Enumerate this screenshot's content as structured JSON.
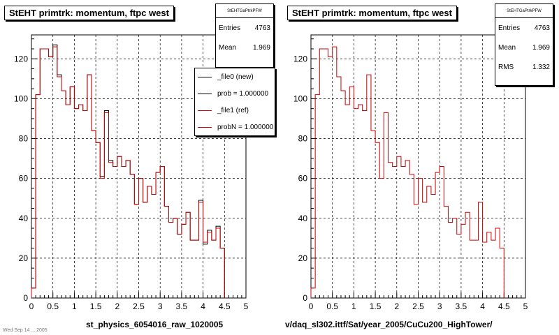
{
  "chart_data": [
    {
      "type": "histogram-step",
      "title": "StEHT primtrk: momentum, ftpc west",
      "xlabel": "st_physics_6054016_raw_1020005",
      "xlim": [
        0,
        5
      ],
      "ylim": [
        0,
        132
      ],
      "xticks": [
        "0",
        "0.5",
        "1",
        "1.5",
        "2",
        "2.5",
        "3",
        "3.5",
        "4",
        "4.5",
        "5"
      ],
      "yticks": [
        "0",
        "20",
        "40",
        "60",
        "80",
        "100",
        "120"
      ],
      "grid": true,
      "bin_width": 0.1,
      "stats": {
        "name": "StEHTGaPtrkPFW",
        "entries_label": "Entries",
        "entries": "4763",
        "mean_label": "Mean",
        "mean": "1.969"
      },
      "legend": {
        "placement": "top-right",
        "entries": [
          "_file0 (new)",
          "prob = 1.000000",
          "_file1 (ref)",
          "probN = 1.000000"
        ],
        "colors": [
          "#000000",
          "#000000",
          "#cc0000",
          "#cc0000"
        ]
      },
      "series": [
        {
          "name": "_file0 (new)",
          "color": "#000000",
          "values": [
            5,
            102,
            125,
            125,
            121,
            127,
            112,
            104,
            97,
            106,
            95,
            97,
            94,
            112,
            84,
            78,
            61,
            94,
            69,
            66,
            71,
            66,
            69,
            62,
            47,
            60,
            48,
            56,
            52,
            63,
            66,
            46,
            38,
            40,
            32,
            37,
            43,
            29,
            29,
            49,
            27,
            34,
            29,
            36,
            25
          ]
        },
        {
          "name": "_file1 (ref)",
          "color": "#cc0000",
          "values": [
            5,
            102,
            125,
            125,
            121,
            126,
            111,
            104,
            97,
            106,
            95,
            97,
            94,
            112,
            84,
            78,
            60,
            93,
            68,
            66,
            71,
            66,
            69,
            62,
            47,
            60,
            48,
            56,
            52,
            63,
            66,
            46,
            38,
            40,
            32,
            37,
            43,
            29,
            29,
            48,
            28,
            33,
            29,
            35,
            25
          ]
        }
      ]
    },
    {
      "type": "histogram-step",
      "title": "StEHT primtrk: momentum, ftpc west",
      "xlabel": "v/daq_sl302.ittf/Sat/year_2005/CuCu200_HighTower/",
      "xlim": [
        0,
        5
      ],
      "ylim": [
        0,
        132
      ],
      "xticks": [
        "0",
        "0.5",
        "1",
        "1.5",
        "2",
        "2.5",
        "3",
        "3.5",
        "4",
        "4.5",
        "5"
      ],
      "yticks": [
        "0",
        "20",
        "40",
        "60",
        "80",
        "100",
        "120"
      ],
      "grid": true,
      "bin_width": 0.1,
      "stats": {
        "name": "StEHTGaPtrkPFW",
        "entries_label": "Entries",
        "entries": "4763",
        "mean_label": "Mean",
        "mean": "1.969",
        "rms_label": "RMS",
        "rms": "1.332"
      },
      "series": [
        {
          "name": "",
          "color": "#cc0000",
          "values": [
            5,
            102,
            125,
            125,
            121,
            126,
            111,
            104,
            97,
            106,
            95,
            97,
            94,
            112,
            84,
            78,
            60,
            93,
            68,
            66,
            71,
            66,
            69,
            62,
            47,
            60,
            48,
            56,
            52,
            63,
            66,
            46,
            38,
            40,
            32,
            37,
            43,
            29,
            29,
            48,
            28,
            33,
            29,
            35,
            25
          ]
        }
      ]
    }
  ],
  "footer": "Wed Sep 14 ... 2005"
}
